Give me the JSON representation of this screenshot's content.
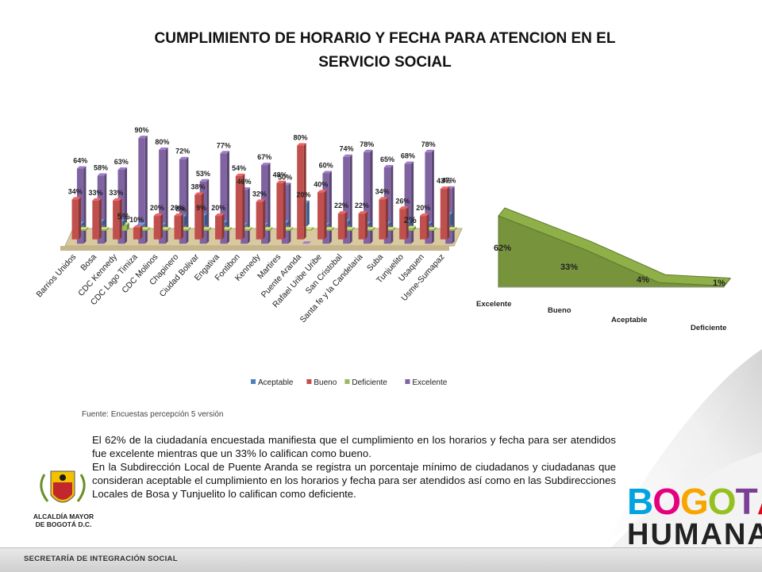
{
  "title_line1": "CUMPLIMIENTO DE  HORARIO Y FECHA PARA ATENCION EN EL",
  "title_line2": "SERVICIO SOCIAL",
  "chart_data": [
    {
      "type": "bar",
      "categories": [
        "Barrios Unidos",
        "Bosa",
        "CDC Kennedy",
        "CDC Lago Timiza",
        "CDC Molinos",
        "Chapinero",
        "Ciudad Bolivar",
        "Engativa",
        "Fontibon",
        "Kennedy",
        "Martires",
        "Puente Aranda",
        "Rafael Uribe Uribe",
        "San Cristobal",
        "Santa fe y la Candelaria",
        "Suba",
        "Tunjuelito",
        "Usaquen",
        "Usme-Sumapaz"
      ],
      "series": [
        {
          "name": "Aceptable",
          "color": "#4f81bd",
          "values": [
            2,
            4,
            4,
            1,
            1,
            8,
            9,
            3,
            1,
            1,
            3,
            20,
            1,
            4,
            2,
            2,
            4,
            2,
            10
          ],
          "labels": [
            "",
            "",
            "",
            "",
            "",
            "8%",
            "9%",
            "",
            "",
            "",
            "",
            "20%",
            "",
            "",
            "",
            "",
            "",
            "",
            ""
          ]
        },
        {
          "name": "Bueno",
          "color": "#c0504d",
          "values": [
            34,
            33,
            33,
            10,
            20,
            20,
            38,
            20,
            54,
            32,
            48,
            80,
            40,
            22,
            22,
            34,
            26,
            20,
            43
          ],
          "labels": [
            "34%",
            "33%",
            "33%",
            "10%",
            "20%",
            "20%",
            "38%",
            "20%",
            "54%",
            "32%",
            "48%",
            "80%",
            "40%",
            "22%",
            "22%",
            "34%",
            "26%",
            "20%",
            "43%"
          ]
        },
        {
          "name": "Deficiente",
          "color": "#9bbb59",
          "values": [
            1,
            1,
            5,
            1,
            1,
            1,
            1,
            1,
            1,
            1,
            1,
            1,
            1,
            1,
            1,
            1,
            2,
            1,
            1
          ],
          "labels": [
            "",
            "",
            "5%",
            "",
            "",
            "",
            "",
            "",
            "",
            "",
            "",
            "",
            "",
            "",
            "",
            "",
            "2%",
            "",
            ""
          ]
        },
        {
          "name": "Excelente",
          "color": "#8064a2",
          "values": [
            64,
            58,
            63,
            90,
            80,
            72,
            53,
            77,
            46,
            67,
            50,
            0,
            60,
            74,
            78,
            65,
            68,
            78,
            47
          ],
          "labels": [
            "64%",
            "58%",
            "63%",
            "90%",
            "80%",
            "72%",
            "53%",
            "77%",
            "46%",
            "67%",
            "50%",
            "",
            "60%",
            "74%",
            "78%",
            "65%",
            "68%",
            "78%",
            "47%"
          ]
        }
      ],
      "legend": "bottom"
    },
    {
      "type": "area",
      "categories": [
        "Excelente",
        "Bueno",
        "Aceptable",
        "Deficiente"
      ],
      "values": [
        62,
        33,
        4,
        1
      ],
      "labels": [
        "62%",
        "33%",
        "4%",
        "1%"
      ],
      "color": "#77933c"
    }
  ],
  "source": "Fuente: Encuestas percepción 5 versión",
  "paragraph1": "El 62% de la ciudadanía encuestada manifiesta que el cumplimiento en los horarios y fecha para ser atendidos  fue excelente mientras que un 33% lo califican como bueno.",
  "paragraph2": "En la Subdirección Local de Puente Aranda se registra un porcentaje mínimo de ciudadanos y ciudadanas que consideran aceptable el cumplimiento en los horarios y fecha para ser atendidos así como en las Subdirecciones Locales de Bosa y Tunjuelito lo califican como deficiente.",
  "seal_line1": "ALCALDÍA MAYOR",
  "seal_line2": "DE BOGOTÁ D.C.",
  "footer": "SECRETARÍA DE INTEGRACIÓN SOCIAL",
  "brand_line1": "BOGOTÁ",
  "brand_line2": "HUMANA",
  "brand_colors": [
    "#00a3e0",
    "#e5007d",
    "#f7a600",
    "#95c11f",
    "#7b3f98",
    "#e30613"
  ]
}
